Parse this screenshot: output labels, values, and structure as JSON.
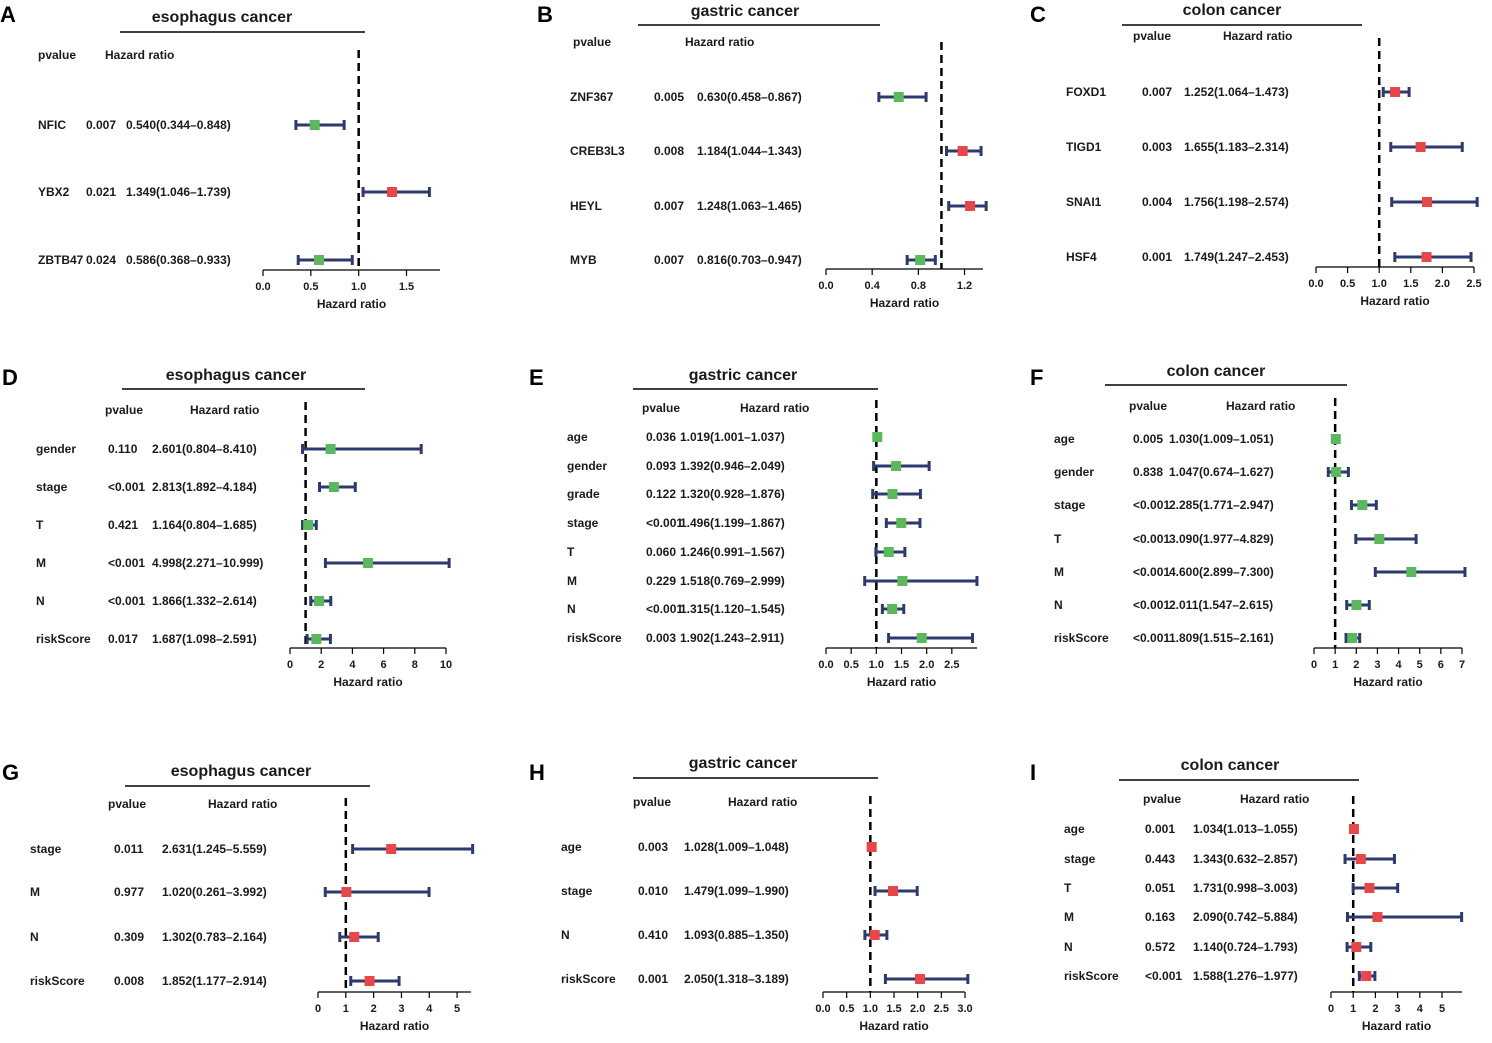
{
  "colors": {
    "protective": "#5cb85c",
    "risk": "#e8474a",
    "ci_line": "#2e3a6e",
    "reference": "#000000"
  },
  "chart_data": [
    {
      "panel": "A",
      "type": "forest",
      "title": "esophagus cancer",
      "pvalue_header": "pvalue",
      "hr_header": "Hazard ratio",
      "xlabel": "Hazard ratio",
      "ticks": [
        0.0,
        0.5,
        1.0,
        1.5
      ],
      "tick_labels": [
        "0.0",
        "0.5",
        "1.0",
        "1.5"
      ],
      "xlim": [
        0,
        1.85
      ],
      "rows": [
        {
          "name": "NFIC",
          "pvalue": "0.007",
          "hr_text": "0.540(0.344–0.848)",
          "hr": 0.54,
          "lo": 0.344,
          "hi": 0.848,
          "color": "green"
        },
        {
          "name": "YBX2",
          "pvalue": "0.021",
          "hr_text": "1.349(1.046–1.739)",
          "hr": 1.349,
          "lo": 1.046,
          "hi": 1.739,
          "color": "red"
        },
        {
          "name": "ZBTB47",
          "pvalue": "0.024",
          "hr_text": "0.586(0.368–0.933)",
          "hr": 0.586,
          "lo": 0.368,
          "hi": 0.933,
          "color": "green"
        }
      ]
    },
    {
      "panel": "B",
      "type": "forest",
      "title": "gastric cancer",
      "pvalue_header": "pvalue",
      "hr_header": "Hazard ratio",
      "xlabel": "Hazard ratio",
      "ticks": [
        0.0,
        0.4,
        0.8,
        1.2
      ],
      "tick_labels": [
        "0.0",
        "0.4",
        "0.8",
        "1.2"
      ],
      "xlim": [
        0,
        1.36
      ],
      "rows": [
        {
          "name": "ZNF367",
          "pvalue": "0.005",
          "hr_text": "0.630(0.458–0.867)",
          "hr": 0.63,
          "lo": 0.458,
          "hi": 0.867,
          "color": "green"
        },
        {
          "name": "CREB3L3",
          "pvalue": "0.008",
          "hr_text": "1.184(1.044–1.343)",
          "hr": 1.184,
          "lo": 1.044,
          "hi": 1.343,
          "color": "red"
        },
        {
          "name": "HEYL",
          "pvalue": "0.007",
          "hr_text": "1.248(1.063–1.465)",
          "hr": 1.248,
          "lo": 1.063,
          "hi": 1.465,
          "color": "red"
        },
        {
          "name": "MYB",
          "pvalue": "0.007",
          "hr_text": "0.816(0.703–0.947)",
          "hr": 0.816,
          "lo": 0.703,
          "hi": 0.947,
          "color": "green"
        }
      ]
    },
    {
      "panel": "C",
      "type": "forest",
      "title": "colon cancer",
      "pvalue_header": "pvalue",
      "hr_header": "Hazard ratio",
      "xlabel": "Hazard ratio",
      "ticks": [
        0.0,
        0.5,
        1.0,
        1.5,
        2.0,
        2.5
      ],
      "tick_labels": [
        "0.0",
        "0.5",
        "1.0",
        "1.5",
        "2.0",
        "2.5"
      ],
      "xlim": [
        0,
        2.5
      ],
      "rows": [
        {
          "name": "FOXD1",
          "pvalue": "0.007",
          "hr_text": "1.252(1.064–1.473)",
          "hr": 1.252,
          "lo": 1.064,
          "hi": 1.473,
          "color": "red"
        },
        {
          "name": "TIGD1",
          "pvalue": "0.003",
          "hr_text": "1.655(1.183–2.314)",
          "hr": 1.655,
          "lo": 1.183,
          "hi": 2.314,
          "color": "red"
        },
        {
          "name": "SNAI1",
          "pvalue": "0.004",
          "hr_text": "1.756(1.198–2.574)",
          "hr": 1.756,
          "lo": 1.198,
          "hi": 2.574,
          "color": "red"
        },
        {
          "name": "HSF4",
          "pvalue": "0.001",
          "hr_text": "1.749(1.247–2.453)",
          "hr": 1.749,
          "lo": 1.247,
          "hi": 2.453,
          "color": "red"
        }
      ]
    },
    {
      "panel": "D",
      "type": "forest",
      "title": "esophagus cancer",
      "pvalue_header": "pvalue",
      "hr_header": "Hazard ratio",
      "xlabel": "Hazard ratio",
      "ticks": [
        0,
        2,
        4,
        6,
        8,
        10
      ],
      "tick_labels": [
        "0",
        "2",
        "4",
        "6",
        "8",
        "10"
      ],
      "xlim": [
        0,
        10
      ],
      "rows": [
        {
          "name": "gender",
          "pvalue": "0.110",
          "hr_text": "2.601(0.804–8.410)",
          "hr": 2.601,
          "lo": 0.804,
          "hi": 8.41,
          "color": "green"
        },
        {
          "name": "stage",
          "pvalue": "<0.001",
          "hr_text": "2.813(1.892–4.184)",
          "hr": 2.813,
          "lo": 1.892,
          "hi": 4.184,
          "color": "green"
        },
        {
          "name": "T",
          "pvalue": "0.421",
          "hr_text": "1.164(0.804–1.685)",
          "hr": 1.164,
          "lo": 0.804,
          "hi": 1.685,
          "color": "green"
        },
        {
          "name": "M",
          "pvalue": "<0.001",
          "hr_text": "4.998(2.271–10.999)",
          "hr": 4.998,
          "lo": 2.271,
          "hi": 10.999,
          "color": "green"
        },
        {
          "name": "N",
          "pvalue": "<0.001",
          "hr_text": "1.866(1.332–2.614)",
          "hr": 1.866,
          "lo": 1.332,
          "hi": 2.614,
          "color": "green"
        },
        {
          "name": "riskScore",
          "pvalue": "0.017",
          "hr_text": "1.687(1.098–2.591)",
          "hr": 1.687,
          "lo": 1.098,
          "hi": 2.591,
          "color": "green"
        }
      ]
    },
    {
      "panel": "E",
      "type": "forest",
      "title": "gastric cancer",
      "pvalue_header": "pvalue",
      "hr_header": "Hazard ratio",
      "xlabel": "Hazard ratio",
      "ticks": [
        0.0,
        0.5,
        1.0,
        1.5,
        2.0,
        2.5
      ],
      "tick_labels": [
        "0.0",
        "0.5",
        "1.0",
        "1.5",
        "2.0",
        "2.5"
      ],
      "xlim": [
        0,
        3.0
      ],
      "rows": [
        {
          "name": "age",
          "pvalue": "0.036",
          "hr_text": "1.019(1.001–1.037)",
          "hr": 1.019,
          "lo": 1.001,
          "hi": 1.037,
          "color": "green"
        },
        {
          "name": "gender",
          "pvalue": "0.093",
          "hr_text": "1.392(0.946–2.049)",
          "hr": 1.392,
          "lo": 0.946,
          "hi": 2.049,
          "color": "green"
        },
        {
          "name": "grade",
          "pvalue": "0.122",
          "hr_text": "1.320(0.928–1.876)",
          "hr": 1.32,
          "lo": 0.928,
          "hi": 1.876,
          "color": "green"
        },
        {
          "name": "stage",
          "pvalue": "<0.001",
          "hr_text": "1.496(1.199–1.867)",
          "hr": 1.496,
          "lo": 1.199,
          "hi": 1.867,
          "color": "green"
        },
        {
          "name": "T",
          "pvalue": "0.060",
          "hr_text": "1.246(0.991–1.567)",
          "hr": 1.246,
          "lo": 0.991,
          "hi": 1.567,
          "color": "green"
        },
        {
          "name": "M",
          "pvalue": "0.229",
          "hr_text": "1.518(0.769–2.999)",
          "hr": 1.518,
          "lo": 0.769,
          "hi": 2.999,
          "color": "green"
        },
        {
          "name": "N",
          "pvalue": "<0.001",
          "hr_text": "1.315(1.120–1.545)",
          "hr": 1.315,
          "lo": 1.12,
          "hi": 1.545,
          "color": "green"
        },
        {
          "name": "riskScore",
          "pvalue": "0.003",
          "hr_text": "1.902(1.243–2.911)",
          "hr": 1.902,
          "lo": 1.243,
          "hi": 2.911,
          "color": "green"
        }
      ]
    },
    {
      "panel": "F",
      "type": "forest",
      "title": "colon cancer",
      "pvalue_header": "pvalue",
      "hr_header": "Hazard ratio",
      "xlabel": "Hazard ratio",
      "ticks": [
        0,
        1,
        2,
        3,
        4,
        5,
        6,
        7
      ],
      "tick_labels": [
        "0",
        "1",
        "2",
        "3",
        "4",
        "5",
        "6",
        "7"
      ],
      "xlim": [
        0,
        7
      ],
      "rows": [
        {
          "name": "age",
          "pvalue": "0.005",
          "hr_text": "1.030(1.009–1.051)",
          "hr": 1.03,
          "lo": 1.009,
          "hi": 1.051,
          "color": "green"
        },
        {
          "name": "gender",
          "pvalue": "0.838",
          "hr_text": "1.047(0.674–1.627)",
          "hr": 1.047,
          "lo": 0.674,
          "hi": 1.627,
          "color": "green"
        },
        {
          "name": "stage",
          "pvalue": "<0.001",
          "hr_text": "2.285(1.771–2.947)",
          "hr": 2.285,
          "lo": 1.771,
          "hi": 2.947,
          "color": "green"
        },
        {
          "name": "T",
          "pvalue": "<0.001",
          "hr_text": "3.090(1.977–4.829)",
          "hr": 3.09,
          "lo": 1.977,
          "hi": 4.829,
          "color": "green"
        },
        {
          "name": "M",
          "pvalue": "<0.001",
          "hr_text": "4.600(2.899–7.300)",
          "hr": 4.6,
          "lo": 2.899,
          "hi": 7.3,
          "color": "green"
        },
        {
          "name": "N",
          "pvalue": "<0.001",
          "hr_text": "2.011(1.547–2.615)",
          "hr": 2.011,
          "lo": 1.547,
          "hi": 2.615,
          "color": "green"
        },
        {
          "name": "riskScore",
          "pvalue": "<0.001",
          "hr_text": "1.809(1.515–2.161)",
          "hr": 1.809,
          "lo": 1.515,
          "hi": 2.161,
          "color": "green"
        }
      ]
    },
    {
      "panel": "G",
      "type": "forest",
      "title": "esophagus cancer",
      "pvalue_header": "pvalue",
      "hr_header": "Hazard ratio",
      "xlabel": "Hazard ratio",
      "ticks": [
        0,
        1,
        2,
        3,
        4,
        5
      ],
      "tick_labels": [
        "0",
        "1",
        "2",
        "3",
        "4",
        "5"
      ],
      "xlim": [
        0,
        5.5
      ],
      "rows": [
        {
          "name": "stage",
          "pvalue": "0.011",
          "hr_text": "2.631(1.245–5.559)",
          "hr": 2.631,
          "lo": 1.245,
          "hi": 5.559,
          "color": "red"
        },
        {
          "name": "M",
          "pvalue": "0.977",
          "hr_text": "1.020(0.261–3.992)",
          "hr": 1.02,
          "lo": 0.261,
          "hi": 3.992,
          "color": "red"
        },
        {
          "name": "N",
          "pvalue": "0.309",
          "hr_text": "1.302(0.783–2.164)",
          "hr": 1.302,
          "lo": 0.783,
          "hi": 2.164,
          "color": "red"
        },
        {
          "name": "riskScore",
          "pvalue": "0.008",
          "hr_text": "1.852(1.177–2.914)",
          "hr": 1.852,
          "lo": 1.177,
          "hi": 2.914,
          "color": "red"
        }
      ]
    },
    {
      "panel": "H",
      "type": "forest",
      "title": "gastric cancer",
      "pvalue_header": "pvalue",
      "hr_header": "Hazard ratio",
      "xlabel": "Hazard ratio",
      "ticks": [
        0.0,
        0.5,
        1.0,
        1.5,
        2.0,
        2.5,
        3.0
      ],
      "tick_labels": [
        "0.0",
        "0.5",
        "1.0",
        "1.5",
        "2.0",
        "2.5",
        "3.0"
      ],
      "xlim": [
        0,
        3.0
      ],
      "rows": [
        {
          "name": "age",
          "pvalue": "0.003",
          "hr_text": "1.028(1.009–1.048)",
          "hr": 1.028,
          "lo": 1.009,
          "hi": 1.048,
          "color": "red"
        },
        {
          "name": "stage",
          "pvalue": "0.010",
          "hr_text": "1.479(1.099–1.990)",
          "hr": 1.479,
          "lo": 1.099,
          "hi": 1.99,
          "color": "red"
        },
        {
          "name": "N",
          "pvalue": "0.410",
          "hr_text": "1.093(0.885–1.350)",
          "hr": 1.093,
          "lo": 0.885,
          "hi": 1.35,
          "color": "red"
        },
        {
          "name": "riskScore",
          "pvalue": "0.001",
          "hr_text": "2.050(1.318–3.189)",
          "hr": 2.05,
          "lo": 1.318,
          "hi": 3.189,
          "color": "red"
        }
      ]
    },
    {
      "panel": "I",
      "type": "forest",
      "title": "colon cancer",
      "pvalue_header": "pvalue",
      "hr_header": "Hazard ratio",
      "xlabel": "Hazard ratio",
      "ticks": [
        0,
        1,
        2,
        3,
        4,
        5
      ],
      "tick_labels": [
        "0",
        "1",
        "2",
        "3",
        "4",
        "5"
      ],
      "xlim": [
        0,
        5.9
      ],
      "rows": [
        {
          "name": "age",
          "pvalue": "0.001",
          "hr_text": "1.034(1.013–1.055)",
          "hr": 1.034,
          "lo": 1.013,
          "hi": 1.055,
          "color": "red"
        },
        {
          "name": "stage",
          "pvalue": "0.443",
          "hr_text": "1.343(0.632–2.857)",
          "hr": 1.343,
          "lo": 0.632,
          "hi": 2.857,
          "color": "red"
        },
        {
          "name": "T",
          "pvalue": "0.051",
          "hr_text": "1.731(0.998–3.003)",
          "hr": 1.731,
          "lo": 0.998,
          "hi": 3.003,
          "color": "red"
        },
        {
          "name": "M",
          "pvalue": "0.163",
          "hr_text": "2.090(0.742–5.884)",
          "hr": 2.09,
          "lo": 0.742,
          "hi": 5.884,
          "color": "red"
        },
        {
          "name": "N",
          "pvalue": "0.572",
          "hr_text": "1.140(0.724–1.793)",
          "hr": 1.14,
          "lo": 0.724,
          "hi": 1.793,
          "color": "red"
        },
        {
          "name": "riskScore",
          "pvalue": "<0.001",
          "hr_text": "1.588(1.276–1.977)",
          "hr": 1.588,
          "lo": 1.276,
          "hi": 1.977,
          "color": "red"
        }
      ]
    }
  ]
}
